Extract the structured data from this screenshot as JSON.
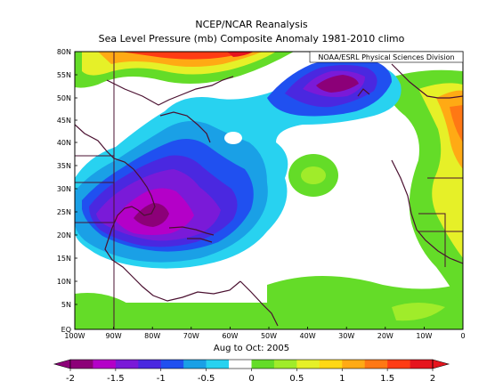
{
  "titles": {
    "line1": "NCEP/NCAR Reanalysis",
    "line2": "Sea Level Pressure (mb) Composite Anomaly 1981-2010 climo"
  },
  "credit": "NOAA/ESRL Physical Sciences Division",
  "period_label": "Aug to Oct: 2005",
  "lat_labels": [
    "80N",
    "55N",
    "50N",
    "45N",
    "40N",
    "35N",
    "30N",
    "25N",
    "20N",
    "15N",
    "10N",
    "5N",
    "EQ"
  ],
  "lon_labels": [
    "100W",
    "90W",
    "80W",
    "70W",
    "60W",
    "50W",
    "40W",
    "30W",
    "20W",
    "10W",
    "0"
  ],
  "colorbar": {
    "tick_labels": [
      "-2",
      "-1.5",
      "-1",
      "-0.5",
      "0",
      "0.5",
      "1",
      "1.5",
      "2"
    ],
    "colors": [
      "#8c0078",
      "#b400c8",
      "#7a1ad8",
      "#4a28e0",
      "#2050f0",
      "#1aa0e6",
      "#28d2f0",
      "#ffffff",
      "#64dc28",
      "#a0ec2a",
      "#e6f028",
      "#ffd814",
      "#ffaa14",
      "#ff7814",
      "#ff3c14",
      "#e6141e"
    ],
    "arrow_left_color": "#8c0078",
    "arrow_right_color": "#e6141e"
  },
  "colors": {
    "land_outline": "#4a1030",
    "background": "#ffffff"
  }
}
